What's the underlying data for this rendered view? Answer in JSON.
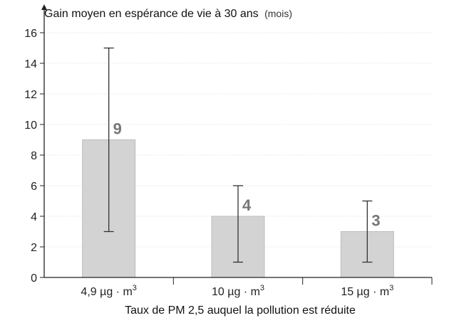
{
  "chart_data": {
    "type": "bar",
    "title": "Gain moyen en espérance de vie à 30 ans",
    "title_unit": "(mois)",
    "xlabel": "Taux de PM 2,5 auquel la pollution est réduite",
    "ylabel": "",
    "categories": [
      {
        "main": "4,9 µg · m",
        "sup": "3"
      },
      {
        "main": "10 µg · m",
        "sup": "3"
      },
      {
        "main": "15 µg · m",
        "sup": "3"
      }
    ],
    "values": [
      9,
      4,
      3
    ],
    "data_labels": [
      "9",
      "4",
      "3"
    ],
    "error_low": [
      3,
      1,
      1
    ],
    "error_high": [
      15,
      6,
      5
    ],
    "ylim": [
      0,
      16
    ],
    "yticks": [
      "0",
      "2",
      "4",
      "6",
      "8",
      "10",
      "12",
      "14",
      "16"
    ],
    "grid": true,
    "legend": "none",
    "colors": {
      "bar_fill": "#d3d3d3",
      "bar_stroke": "#bdbdbd",
      "error_bar": "#333333",
      "grid": "#dddddd",
      "axis": "#222222",
      "data_label": "#777777"
    }
  }
}
